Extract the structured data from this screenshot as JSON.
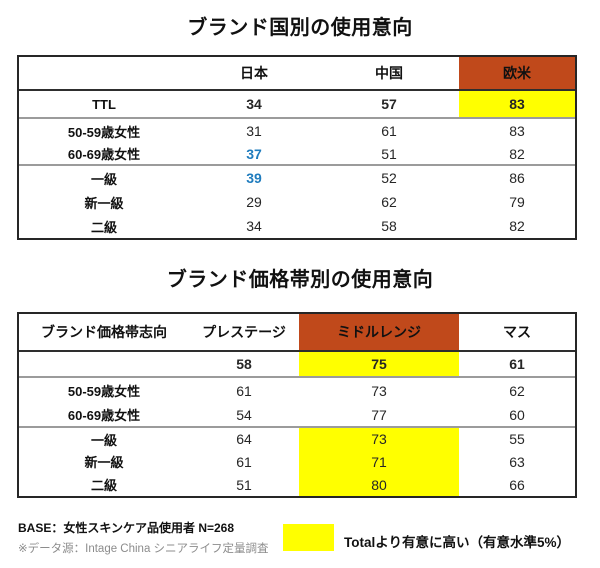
{
  "colors": {
    "accent_orange": "#C0491B",
    "highlight_yellow": "#FFFF00",
    "notable_blue": "#1F7CBE",
    "separator_gray": "#9b9b9b",
    "muted_text": "#8c8c8c"
  },
  "table1": {
    "title": "ブランド国別の使用意向",
    "columns": [
      "",
      "日本",
      "中国",
      "欧米"
    ],
    "header_highlight_column": "欧米",
    "rows": [
      {
        "label": "TTL",
        "values": [
          34,
          57,
          83
        ],
        "yellow": [
          false,
          false,
          true
        ],
        "blue": [
          false,
          false,
          false
        ]
      },
      {
        "label": "50-59歳女性",
        "values": [
          31,
          61,
          83
        ],
        "yellow": [
          false,
          false,
          false
        ],
        "blue": [
          false,
          false,
          false
        ]
      },
      {
        "label": "60-69歳女性",
        "values": [
          37,
          51,
          82
        ],
        "yellow": [
          false,
          false,
          false
        ],
        "blue": [
          true,
          false,
          false
        ]
      },
      {
        "label": "一級",
        "values": [
          39,
          52,
          86
        ],
        "yellow": [
          false,
          false,
          false
        ],
        "blue": [
          true,
          false,
          false
        ]
      },
      {
        "label": "新一級",
        "values": [
          29,
          62,
          79
        ],
        "yellow": [
          false,
          false,
          false
        ],
        "blue": [
          false,
          false,
          false
        ]
      },
      {
        "label": "二級",
        "values": [
          34,
          58,
          82
        ],
        "yellow": [
          false,
          false,
          false
        ],
        "blue": [
          false,
          false,
          false
        ]
      }
    ]
  },
  "table2": {
    "title": "ブランド価格帯別の使用意向",
    "columns": [
      "ブランド価格帯志向",
      "プレステージ",
      "ミドルレンジ",
      "マス"
    ],
    "header_highlight_column": "ミドルレンジ",
    "rows": [
      {
        "label": "",
        "values": [
          58,
          75,
          61
        ],
        "yellow": [
          false,
          true,
          false
        ]
      },
      {
        "label": "50-59歳女性",
        "values": [
          61,
          73,
          62
        ],
        "yellow": [
          false,
          false,
          false
        ]
      },
      {
        "label": "60-69歳女性",
        "values": [
          54,
          77,
          60
        ],
        "yellow": [
          false,
          false,
          false
        ]
      },
      {
        "label": "一級",
        "values": [
          64,
          73,
          55
        ],
        "yellow": [
          false,
          true,
          false
        ]
      },
      {
        "label": "新一級",
        "values": [
          61,
          71,
          63
        ],
        "yellow": [
          false,
          true,
          false
        ]
      },
      {
        "label": "二級",
        "values": [
          51,
          80,
          66
        ],
        "yellow": [
          false,
          true,
          false
        ]
      }
    ]
  },
  "footer": {
    "base_line": "BASE：女性スキンケア品使用者 N=268",
    "source_line": "※データ源：Intage China シニアライフ定量調査",
    "legend_label": "Totalより有意に高い（有意水準5%）"
  }
}
